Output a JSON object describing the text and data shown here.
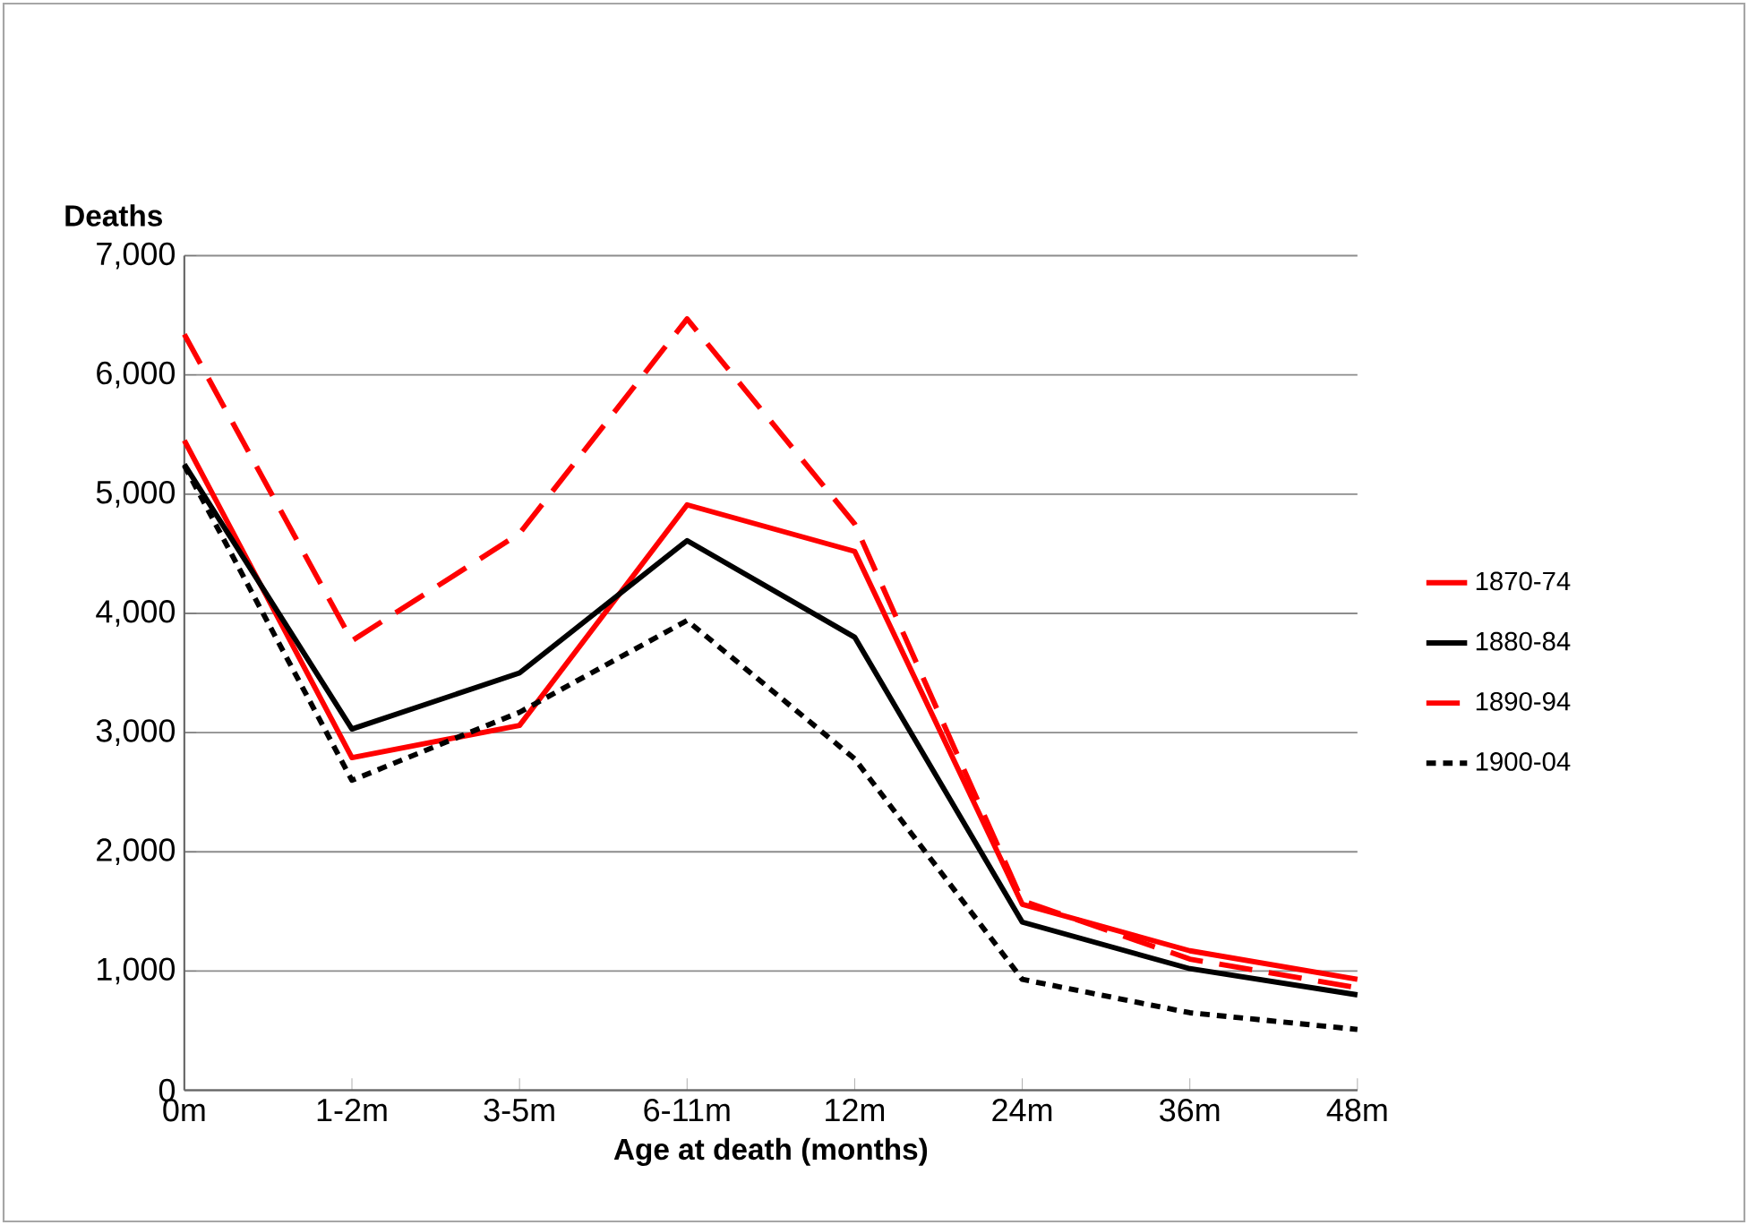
{
  "chart_data": {
    "type": "line",
    "xlabel": "Age at death (months)",
    "ylabel": "Deaths",
    "categories": [
      "0m",
      "1-2m",
      "3-5m",
      "6-11m",
      "12m",
      "24m",
      "36m",
      "48m"
    ],
    "series": [
      {
        "name": "1870-74",
        "color": "#ff0000",
        "line_style": "solid",
        "values": [
          5450,
          2790,
          3060,
          4910,
          4520,
          1560,
          1170,
          930
        ]
      },
      {
        "name": "1880-84",
        "color": "#000000",
        "line_style": "solid",
        "values": [
          5250,
          3030,
          3500,
          4610,
          3800,
          1410,
          1020,
          800
        ]
      },
      {
        "name": "1890-94",
        "color": "#ff0000",
        "line_style": "dashed",
        "values": [
          6340,
          3770,
          4670,
          6470,
          4750,
          1590,
          1100,
          860
        ]
      },
      {
        "name": "1900-04",
        "color": "#000000",
        "line_style": "dotted",
        "values": [
          5240,
          2600,
          3170,
          3940,
          2780,
          930,
          650,
          510
        ]
      }
    ],
    "ylim": [
      0,
      7000
    ],
    "yticks": [
      {
        "value": 0,
        "label": "0"
      },
      {
        "value": 1000,
        "label": "1,000"
      },
      {
        "value": 2000,
        "label": "2,000"
      },
      {
        "value": 3000,
        "label": "3,000"
      },
      {
        "value": 4000,
        "label": "4,000"
      },
      {
        "value": 5000,
        "label": "5,000"
      },
      {
        "value": 6000,
        "label": "6,000"
      },
      {
        "value": 7000,
        "label": "7,000"
      }
    ],
    "grid": "y",
    "legend": "right",
    "marker": "none"
  }
}
